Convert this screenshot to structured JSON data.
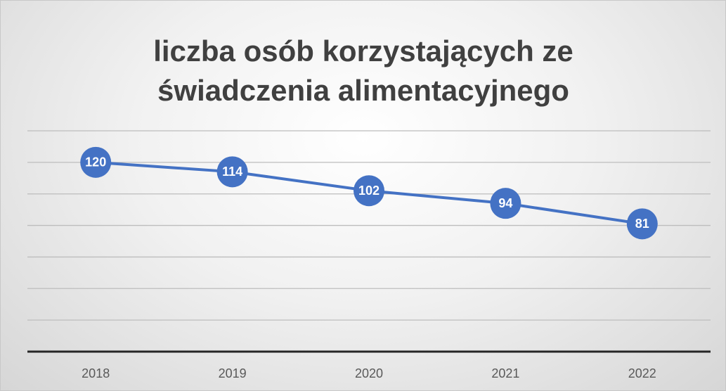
{
  "chart_data": {
    "type": "line",
    "title": "liczba osób korzystających ze świadczenia alimentacyjnego",
    "categories": [
      "2018",
      "2019",
      "2020",
      "2021",
      "2022"
    ],
    "values": [
      120,
      114,
      102,
      94,
      81
    ],
    "color": "#4472c4",
    "ylim": [
      0,
      140
    ],
    "yticks": [
      0,
      20,
      40,
      60,
      80,
      100,
      120,
      140
    ],
    "grid": true
  }
}
